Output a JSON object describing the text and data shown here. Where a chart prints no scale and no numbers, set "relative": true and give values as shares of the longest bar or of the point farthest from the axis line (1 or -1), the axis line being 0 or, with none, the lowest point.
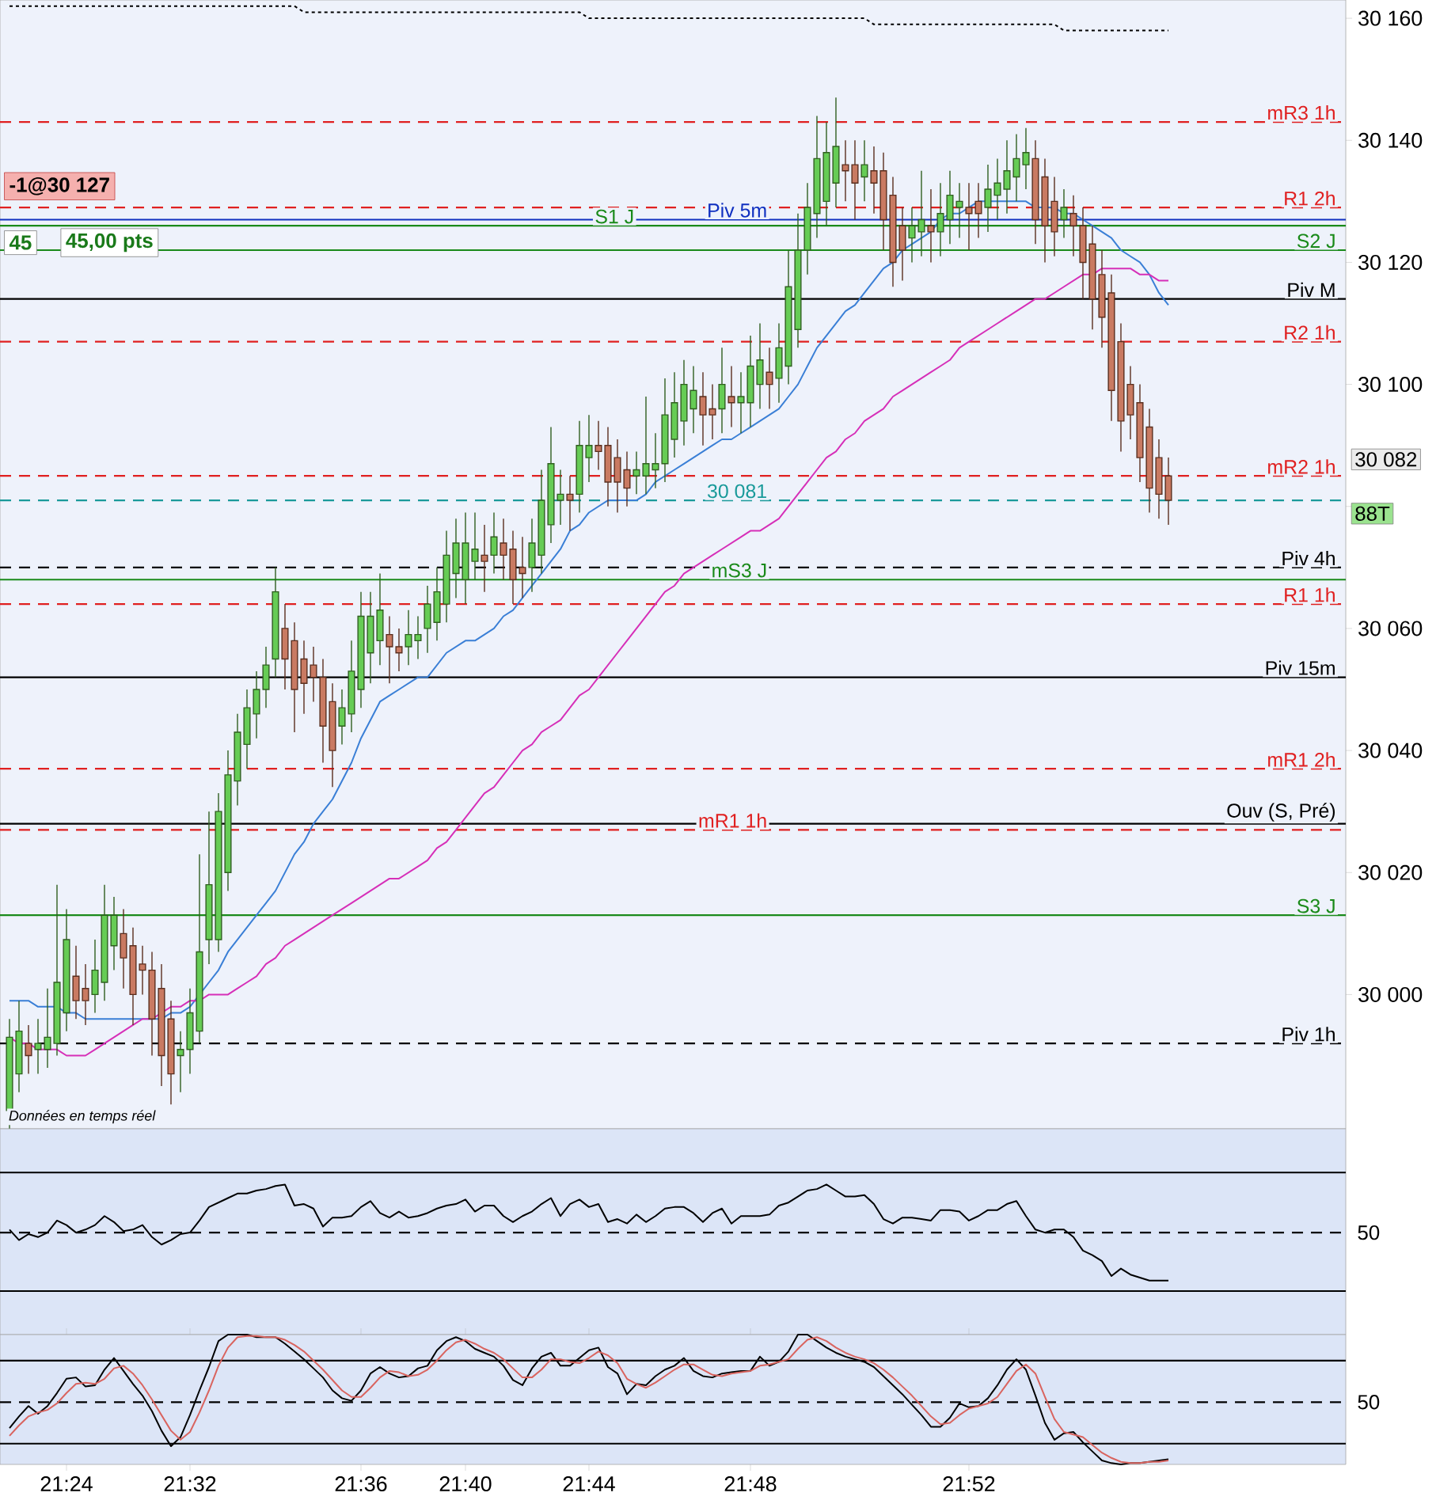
{
  "chart_data": [
    {
      "type": "candlestick",
      "categories": [
        null,
        null,
        null,
        null,
        null,
        null,
        null,
        null,
        null,
        null,
        null,
        null,
        null,
        null,
        null,
        null,
        null,
        null,
        null,
        null,
        null,
        null,
        null,
        null,
        null,
        null,
        null,
        null,
        null,
        null,
        null,
        null,
        null,
        null,
        null,
        null,
        null,
        null,
        null,
        null,
        null,
        null,
        null,
        null,
        null,
        null,
        null,
        null,
        null,
        null,
        null,
        null,
        null,
        null,
        null,
        null,
        null,
        null,
        null,
        null,
        null,
        null,
        null,
        null,
        null,
        null,
        null,
        null,
        null,
        null,
        null,
        null,
        null,
        null,
        null,
        null,
        null,
        null,
        null,
        null,
        null,
        null,
        null,
        null,
        null,
        null,
        null,
        null,
        null,
        null,
        null,
        null,
        null,
        null,
        null,
        null,
        null,
        null,
        null,
        null,
        null,
        null,
        null,
        null,
        null,
        null,
        null,
        null,
        null,
        null,
        null,
        null,
        null,
        null,
        null,
        null,
        null,
        null,
        null,
        null,
        null,
        null,
        null
      ],
      "ohlc": [
        [
          29981,
          29996,
          29978,
          29993
        ],
        [
          29987,
          29999,
          29984,
          29994
        ],
        [
          29992,
          29995,
          29987,
          29990
        ],
        [
          29991,
          29996,
          29987,
          29992
        ],
        [
          29991,
          30001,
          29988,
          29993
        ],
        [
          29992,
          30018,
          29990,
          30002
        ],
        [
          29997,
          30014,
          29994,
          30009
        ],
        [
          30003,
          30008,
          29996,
          29999
        ],
        [
          30001,
          30005,
          29995,
          29999
        ],
        [
          30000,
          30009,
          29997,
          30004
        ],
        [
          30002,
          30018,
          29999,
          30013
        ],
        [
          30008,
          30016,
          30004,
          30013
        ],
        [
          30010,
          30014,
          30001,
          30006
        ],
        [
          30008,
          30011,
          29995,
          30000
        ],
        [
          30005,
          30008,
          30000,
          30004
        ],
        [
          30004,
          30007,
          29990,
          29996
        ],
        [
          30001,
          30005,
          29985,
          29990
        ],
        [
          29996,
          29999,
          29982,
          29987
        ],
        [
          29990,
          29994,
          29984,
          29991
        ],
        [
          29991,
          30001,
          29987,
          29997
        ],
        [
          29994,
          30023,
          29992,
          30007
        ],
        [
          30009,
          30030,
          30005,
          30018
        ],
        [
          30009,
          30033,
          30007,
          30030
        ],
        [
          30020,
          30040,
          30017,
          30036
        ],
        [
          30035,
          30046,
          30031,
          30043
        ],
        [
          30041,
          30050,
          30037,
          30047
        ],
        [
          30046,
          30053,
          30042,
          30050
        ],
        [
          30050,
          30057,
          30047,
          30054
        ],
        [
          30055,
          30070,
          30052,
          30066
        ],
        [
          30060,
          30064,
          30050,
          30055
        ],
        [
          30058,
          30061,
          30043,
          30050
        ],
        [
          30055,
          30058,
          30046,
          30051
        ],
        [
          30054,
          30057,
          30048,
          30052
        ],
        [
          30052,
          30055,
          30038,
          30044
        ],
        [
          30048,
          30051,
          30034,
          30040
        ],
        [
          30044,
          30050,
          30041,
          30047
        ],
        [
          30046,
          30058,
          30043,
          30053
        ],
        [
          30050,
          30066,
          30047,
          30062
        ],
        [
          30056,
          30066,
          30051,
          30062
        ],
        [
          30058,
          30069,
          30054,
          30063
        ],
        [
          30059,
          30062,
          30051,
          30057
        ],
        [
          30057,
          30060,
          30053,
          30056
        ],
        [
          30057,
          30063,
          30054,
          30059
        ],
        [
          30058,
          30062,
          30055,
          30059
        ],
        [
          30060,
          30067,
          30056,
          30064
        ],
        [
          30061,
          30070,
          30058,
          30066
        ],
        [
          30064,
          30076,
          30061,
          30072
        ],
        [
          30069,
          30078,
          30065,
          30074
        ],
        [
          30068,
          30079,
          30064,
          30074
        ],
        [
          30071,
          30079,
          30068,
          30073
        ],
        [
          30072,
          30077,
          30066,
          30071
        ],
        [
          30072,
          30079,
          30069,
          30075
        ],
        [
          30074,
          30078,
          30068,
          30072
        ],
        [
          30073,
          30076,
          30064,
          30068
        ],
        [
          30070,
          30075,
          30065,
          30069
        ],
        [
          30070,
          30078,
          30066,
          30074
        ],
        [
          30072,
          30086,
          30069,
          30081
        ],
        [
          30077,
          30093,
          30074,
          30087
        ],
        [
          30081,
          30086,
          30077,
          30082
        ],
        [
          30082,
          30085,
          30076,
          30081
        ],
        [
          30082,
          30094,
          30079,
          30090
        ],
        [
          30088,
          30095,
          30084,
          30090
        ],
        [
          30090,
          30094,
          30086,
          30089
        ],
        [
          30090,
          30093,
          30080,
          30084
        ],
        [
          30088,
          30091,
          30079,
          30084
        ],
        [
          30086,
          30089,
          30080,
          30083
        ],
        [
          30085,
          30089,
          30082,
          30086
        ],
        [
          30085,
          30098,
          30082,
          30087
        ],
        [
          30086,
          30092,
          30083,
          30087
        ],
        [
          30087,
          30101,
          30084,
          30095
        ],
        [
          30091,
          30102,
          30088,
          30097
        ],
        [
          30094,
          30104,
          30090,
          30100
        ],
        [
          30096,
          30103,
          30092,
          30099
        ],
        [
          30098,
          30102,
          30090,
          30095
        ],
        [
          30096,
          30100,
          30091,
          30095
        ],
        [
          30096,
          30106,
          30092,
          30100
        ],
        [
          30098,
          30103,
          30093,
          30097
        ],
        [
          30097,
          30102,
          30092,
          30098
        ],
        [
          30097,
          30108,
          30093,
          30103
        ],
        [
          30100,
          30110,
          30096,
          30104
        ],
        [
          30102,
          30106,
          30096,
          30100
        ],
        [
          30101,
          30110,
          30097,
          30106
        ],
        [
          30103,
          30122,
          30100,
          30116
        ],
        [
          30109,
          30128,
          30106,
          30122
        ],
        [
          30122,
          30133,
          30118,
          30129
        ],
        [
          30128,
          30144,
          30124,
          30137
        ],
        [
          30130,
          30143,
          30126,
          30138
        ],
        [
          30133,
          30147,
          30129,
          30139
        ],
        [
          30136,
          30140,
          30130,
          30135
        ],
        [
          30136,
          30140,
          30127,
          30133
        ],
        [
          30134,
          30140,
          30130,
          30136
        ],
        [
          30135,
          30139,
          30128,
          30133
        ],
        [
          30135,
          30138,
          30122,
          30127
        ],
        [
          30131,
          30134,
          30116,
          30120
        ],
        [
          30126,
          30129,
          30117,
          30122
        ],
        [
          30124,
          30129,
          30120,
          30126
        ],
        [
          30125,
          30135,
          30121,
          30127
        ],
        [
          30126,
          30132,
          30120,
          30125
        ],
        [
          30125,
          30133,
          30121,
          30128
        ],
        [
          30127,
          30135,
          30123,
          30131
        ],
        [
          30129,
          30133,
          30124,
          30130
        ],
        [
          30129,
          30133,
          30122,
          30128
        ],
        [
          30130,
          30133,
          30124,
          30128
        ],
        [
          30129,
          30136,
          30125,
          30132
        ],
        [
          30131,
          30137,
          30127,
          30133
        ],
        [
          30132,
          30140,
          30128,
          30135
        ],
        [
          30134,
          30141,
          30130,
          30137
        ],
        [
          30136,
          30142,
          30132,
          30138
        ],
        [
          30137,
          30140,
          30123,
          30127
        ],
        [
          30134,
          30137,
          30120,
          30126
        ],
        [
          30130,
          30134,
          30121,
          30125
        ],
        [
          30127,
          30132,
          30124,
          30129
        ],
        [
          30128,
          30131,
          30121,
          30126
        ],
        [
          30126,
          30129,
          30114,
          30120
        ],
        [
          30123,
          30126,
          30109,
          30114
        ],
        [
          30118,
          30122,
          30106,
          30111
        ],
        [
          30115,
          30118,
          30094,
          30099
        ],
        [
          30107,
          30110,
          30089,
          30094
        ],
        [
          30100,
          30103,
          30091,
          30095
        ],
        [
          30097,
          30100,
          30084,
          30088
        ],
        [
          30093,
          30096,
          30079,
          30083
        ],
        [
          30088,
          30091,
          30078,
          30082
        ],
        [
          30085,
          30088,
          30077,
          30081
        ]
      ],
      "series": [
        {
          "type": "line",
          "color": "#3a7fd6",
          "values": [
            29999,
            29999,
            29999,
            29998,
            29998,
            29998,
            29997,
            29997,
            29996,
            29996,
            29996,
            29996,
            29996,
            29996,
            29996,
            29996,
            29996,
            29997,
            29997,
            29998,
            30000,
            30002,
            30004,
            30007,
            30009,
            30011,
            30013,
            30015,
            30017,
            30020,
            30023,
            30025,
            30028,
            30030,
            30032,
            30035,
            30038,
            30042,
            30045,
            30048,
            30049,
            30050,
            30051,
            30052,
            30052,
            30054,
            30056,
            30057,
            30058,
            30058,
            30059,
            30060,
            30062,
            30063,
            30065,
            30067,
            30069,
            30071,
            30073,
            30076,
            30077,
            30079,
            30080,
            30081,
            30081,
            30081,
            30081,
            30082,
            30084,
            30085,
            30086,
            30087,
            30088,
            30089,
            30090,
            30091,
            30091,
            30092,
            30093,
            30094,
            30095,
            30096,
            30098,
            30100,
            30103,
            30106,
            30108,
            30110,
            30112,
            30113,
            30115,
            30117,
            30119,
            30120,
            30122,
            30123,
            30124,
            30125,
            30127,
            30128,
            30128,
            30129,
            30130,
            30130,
            30130,
            30130,
            30130,
            30130,
            30129,
            30129,
            30129,
            30128,
            30128,
            30127,
            30126,
            30125,
            30124,
            30122,
            30121,
            30120,
            30118,
            30115,
            30113
          ]
        },
        {
          "type": "line",
          "color": "#d62fb8",
          "values": [
            29993,
            29992,
            29992,
            29991,
            29991,
            29991,
            29990,
            29990,
            29990,
            29991,
            29992,
            29993,
            29994,
            29995,
            29996,
            29996,
            29997,
            29998,
            29998,
            29999,
            29999,
            30000,
            30000,
            30000,
            30001,
            30002,
            30003,
            30005,
            30006,
            30008,
            30009,
            30010,
            30011,
            30012,
            30013,
            30014,
            30015,
            30016,
            30017,
            30018,
            30019,
            30019,
            30020,
            30021,
            30022,
            30024,
            30025,
            30027,
            30029,
            30031,
            30033,
            30034,
            30036,
            30038,
            30040,
            30041,
            30043,
            30044,
            30045,
            30047,
            30049,
            30050,
            30052,
            30054,
            30056,
            30058,
            30060,
            30062,
            30064,
            30066,
            30067,
            30069,
            30070,
            30071,
            30072,
            30073,
            30074,
            30075,
            30076,
            30076,
            30077,
            30078,
            30080,
            30082,
            30084,
            30086,
            30088,
            30089,
            30091,
            30092,
            30094,
            30095,
            30096,
            30098,
            30099,
            30100,
            30101,
            30102,
            30103,
            30104,
            30106,
            30107,
            30108,
            30109,
            30110,
            30111,
            30112,
            30113,
            30114,
            30114,
            30115,
            30116,
            30117,
            30118,
            30118,
            30119,
            30119,
            30119,
            30119,
            30118,
            30118,
            30117,
            30117
          ]
        },
        {
          "type": "line",
          "color": "#000000",
          "line_style": "dotted",
          "values": [
            30162,
            30162,
            30162,
            30162,
            30162,
            30162,
            30162,
            30162,
            30162,
            30162,
            30162,
            30162,
            30162,
            30162,
            30162,
            30162,
            30162,
            30162,
            30162,
            30162,
            30162,
            30162,
            30162,
            30162,
            30162,
            30162,
            30162,
            30162,
            30162,
            30162,
            30162,
            30161,
            30161,
            30161,
            30161,
            30161,
            30161,
            30161,
            30161,
            30161,
            30161,
            30161,
            30161,
            30161,
            30161,
            30161,
            30161,
            30161,
            30161,
            30161,
            30161,
            30161,
            30161,
            30161,
            30161,
            30161,
            30161,
            30161,
            30161,
            30161,
            30161,
            30160,
            30160,
            30160,
            30160,
            30160,
            30160,
            30160,
            30160,
            30160,
            30160,
            30160,
            30160,
            30160,
            30160,
            30160,
            30160,
            30160,
            30160,
            30160,
            30160,
            30160,
            30160,
            30160,
            30160,
            30160,
            30160,
            30160,
            30160,
            30160,
            30160,
            30159,
            30159,
            30159,
            30159,
            30159,
            30159,
            30159,
            30159,
            30159,
            30159,
            30159,
            30159,
            30159,
            30159,
            30159,
            30159,
            30159,
            30159,
            30159,
            30159,
            30158,
            30158,
            30158,
            30158,
            30158,
            30158,
            30158,
            30158,
            30158,
            30158,
            30158,
            30158
          ]
        }
      ],
      "ylim": [
        29978,
        30163
      ],
      "yticks": [
        {
          "value": 30000,
          "label": "30 000"
        },
        {
          "value": 30020,
          "label": "30 020"
        },
        {
          "value": 30040,
          "label": "30 040"
        },
        {
          "value": 30060,
          "label": "30 060"
        },
        {
          "value": 30080,
          "label": null
        },
        {
          "value": 30100,
          "label": "30 100"
        },
        {
          "value": 30120,
          "label": "30 120"
        },
        {
          "value": 30140,
          "label": "30 140"
        },
        {
          "value": 30160,
          "label": "30 160"
        }
      ],
      "ref_lines": [
        {
          "axis": "y",
          "value": 30143,
          "label": "mR3 1h",
          "color": "#e02020",
          "line_style": "dashed"
        },
        {
          "axis": "y",
          "value": 30129,
          "label": "R1 2h",
          "color": "#e02020",
          "line_style": "dashed"
        },
        {
          "axis": "y",
          "value": 30127,
          "label": "Piv 5m",
          "color": "#1030c0",
          "line_style": "solid"
        },
        {
          "axis": "y",
          "value": 30126,
          "label": "S1 J",
          "color": "#1a8a1a",
          "line_style": "solid"
        },
        {
          "axis": "y",
          "value": 30122,
          "label": "S2 J",
          "color": "#1a8a1a",
          "line_style": "solid"
        },
        {
          "axis": "y",
          "value": 30114,
          "label": "Piv M",
          "color": "#000000",
          "line_style": "solid"
        },
        {
          "axis": "y",
          "value": 30107,
          "label": "R2 1h",
          "color": "#e02020",
          "line_style": "dashed"
        },
        {
          "axis": "y",
          "value": 30085,
          "label": "mR2 1h",
          "color": "#e02020",
          "line_style": "dashed"
        },
        {
          "axis": "y",
          "value": 30081,
          "label": "30 081",
          "color": "#1a9a9a",
          "line_style": "dashed"
        },
        {
          "axis": "y",
          "value": 30070,
          "label": "Piv 4h",
          "color": "#000000",
          "line_style": "dashed"
        },
        {
          "axis": "y",
          "value": 30068,
          "label": "mS3 J",
          "color": "#1a8a1a",
          "line_style": "solid"
        },
        {
          "axis": "y",
          "value": 30064,
          "label": "R1 1h",
          "color": "#e02020",
          "line_style": "dashed"
        },
        {
          "axis": "y",
          "value": 30052,
          "label": "Piv 15m",
          "color": "#000000",
          "line_style": "solid"
        },
        {
          "axis": "y",
          "value": 30037,
          "label": "mR1 2h",
          "color": "#e02020",
          "line_style": "dashed"
        },
        {
          "axis": "y",
          "value": 30028,
          "label": "Ouv (S, Pré)",
          "color": "#000000",
          "line_style": "solid"
        },
        {
          "axis": "y",
          "value": 30027,
          "label": "mR1 1h",
          "color": "#e02020",
          "line_style": "dashed"
        },
        {
          "axis": "y",
          "value": 30013,
          "label": "S3 J",
          "color": "#1a8a1a",
          "line_style": "solid"
        },
        {
          "axis": "y",
          "value": 29992,
          "label": "Piv 1h",
          "color": "#000000",
          "line_style": "dashed"
        }
      ],
      "annotations": [
        "-1@30 127",
        "45",
        "45,00 pts",
        "Données en temps réel",
        "30 082",
        "88T"
      ],
      "tick_labels": "y"
    },
    {
      "type": "line",
      "relative": true,
      "categories": [
        null,
        null,
        null,
        null,
        null,
        null,
        null,
        null,
        null,
        null,
        null,
        null,
        null,
        null,
        null,
        null,
        null,
        null,
        null,
        null,
        null,
        null,
        null,
        null,
        null,
        null,
        null,
        null,
        null,
        null,
        null,
        null,
        null,
        null,
        null,
        null,
        null,
        null,
        null,
        null,
        null,
        null,
        null,
        null,
        null,
        null,
        null,
        null,
        null,
        null,
        null,
        null,
        null,
        null,
        null,
        null,
        null,
        null,
        null,
        null,
        null,
        null,
        null,
        null,
        null,
        null,
        null,
        null,
        null,
        null,
        null,
        null,
        null,
        null,
        null,
        null,
        null,
        null,
        null,
        null,
        null,
        null,
        null,
        null,
        null,
        null,
        null,
        null,
        null,
        null,
        null,
        null,
        null,
        null,
        null,
        null,
        null,
        null,
        null,
        null,
        null,
        null,
        null,
        null,
        null,
        null,
        null,
        null,
        null,
        null,
        null,
        null,
        null,
        null,
        null,
        null,
        null,
        null,
        null,
        null,
        null,
        null,
        null
      ],
      "series": [
        {
          "color": "#000000",
          "values": [
            0.7,
            0.63,
            0.67,
            0.65,
            0.68,
            0.76,
            0.73,
            0.68,
            0.7,
            0.73,
            0.79,
            0.75,
            0.69,
            0.7,
            0.73,
            0.65,
            0.6,
            0.63,
            0.67,
            0.68,
            0.76,
            0.85,
            0.88,
            0.91,
            0.94,
            0.94,
            0.96,
            0.97,
            0.99,
            1.0,
            0.86,
            0.87,
            0.84,
            0.72,
            0.78,
            0.78,
            0.79,
            0.85,
            0.89,
            0.81,
            0.78,
            0.82,
            0.78,
            0.79,
            0.81,
            0.84,
            0.86,
            0.87,
            0.9,
            0.82,
            0.86,
            0.86,
            0.79,
            0.75,
            0.79,
            0.82,
            0.87,
            0.91,
            0.79,
            0.87,
            0.9,
            0.85,
            0.87,
            0.75,
            0.77,
            0.74,
            0.8,
            0.75,
            0.79,
            0.84,
            0.85,
            0.85,
            0.81,
            0.75,
            0.81,
            0.84,
            0.74,
            0.79,
            0.79,
            0.79,
            0.8,
            0.86,
            0.88,
            0.92,
            0.96,
            0.97,
            1.0,
            0.96,
            0.92,
            0.92,
            0.93,
            0.87,
            0.77,
            0.74,
            0.78,
            0.78,
            0.77,
            0.76,
            0.83,
            0.83,
            0.82,
            0.76,
            0.79,
            0.83,
            0.83,
            0.87,
            0.89,
            0.79,
            0.7,
            0.68,
            0.7,
            0.7,
            0.65,
            0.56,
            0.53,
            0.49,
            0.39,
            0.44,
            0.4,
            0.38,
            0.36,
            0.36,
            0.36
          ]
        }
      ],
      "ref_lines": [
        {
          "axis": "y",
          "value": 1.08,
          "color": "#000000",
          "line_style": "solid"
        },
        {
          "axis": "y",
          "value": 0.68,
          "color": "#000000",
          "line_style": "dashed"
        },
        {
          "axis": "y",
          "value": 0.29,
          "color": "#000000",
          "line_style": "solid"
        }
      ],
      "annotations": [
        "50"
      ],
      "tick_labels": false
    },
    {
      "type": "line",
      "relative": true,
      "categories": [
        null,
        null,
        null,
        null,
        null,
        null,
        "21:24",
        null,
        null,
        null,
        null,
        null,
        null,
        null,
        null,
        null,
        null,
        null,
        null,
        "21:32",
        null,
        null,
        null,
        null,
        null,
        null,
        null,
        null,
        null,
        null,
        null,
        null,
        null,
        null,
        null,
        null,
        null,
        "21:36",
        null,
        null,
        null,
        null,
        null,
        null,
        null,
        null,
        null,
        null,
        "21:40",
        null,
        null,
        null,
        null,
        null,
        null,
        null,
        null,
        null,
        null,
        null,
        null,
        "21:44",
        null,
        null,
        null,
        null,
        null,
        null,
        null,
        null,
        null,
        null,
        null,
        null,
        null,
        null,
        null,
        null,
        "21:48",
        null,
        null,
        null,
        null,
        null,
        null,
        null,
        null,
        null,
        null,
        null,
        null,
        null,
        null,
        null,
        null,
        null,
        null,
        null,
        null,
        null,
        null,
        "21:52",
        null,
        null,
        null,
        null,
        null,
        null,
        null,
        null,
        null,
        null,
        null,
        null,
        null,
        null,
        null,
        null,
        null,
        null,
        null,
        null,
        null
      ],
      "series": [
        {
          "color": "#000000",
          "values": [
            0.28,
            0.37,
            0.45,
            0.39,
            0.45,
            0.55,
            0.66,
            0.67,
            0.6,
            0.61,
            0.73,
            0.82,
            0.72,
            0.62,
            0.53,
            0.41,
            0.26,
            0.14,
            0.21,
            0.38,
            0.57,
            0.75,
            0.95,
            1.0,
            1.0,
            1.0,
            0.98,
            0.98,
            0.98,
            0.93,
            0.87,
            0.81,
            0.74,
            0.67,
            0.57,
            0.51,
            0.49,
            0.57,
            0.7,
            0.75,
            0.7,
            0.67,
            0.68,
            0.74,
            0.76,
            0.88,
            0.95,
            0.98,
            0.95,
            0.89,
            0.86,
            0.83,
            0.76,
            0.65,
            0.61,
            0.74,
            0.83,
            0.86,
            0.76,
            0.76,
            0.82,
            0.88,
            0.9,
            0.75,
            0.7,
            0.54,
            0.62,
            0.61,
            0.68,
            0.73,
            0.76,
            0.82,
            0.72,
            0.68,
            0.67,
            0.7,
            0.71,
            0.72,
            0.72,
            0.83,
            0.76,
            0.79,
            0.87,
            1.0,
            1.0,
            0.95,
            0.9,
            0.86,
            0.83,
            0.81,
            0.79,
            0.75,
            0.68,
            0.61,
            0.54,
            0.46,
            0.38,
            0.29,
            0.29,
            0.36,
            0.47,
            0.44,
            0.45,
            0.51,
            0.61,
            0.73,
            0.81,
            0.73,
            0.53,
            0.32,
            0.19,
            0.24,
            0.25,
            0.17,
            0.1,
            0.03,
            0.01,
            0.0,
            0.01,
            0.01,
            0.02,
            0.03,
            0.04
          ]
        },
        {
          "color": "#d9645f",
          "values": [
            0.22,
            0.3,
            0.37,
            0.4,
            0.42,
            0.47,
            0.55,
            0.62,
            0.63,
            0.62,
            0.66,
            0.74,
            0.76,
            0.7,
            0.61,
            0.5,
            0.38,
            0.26,
            0.19,
            0.25,
            0.4,
            0.57,
            0.76,
            0.9,
            0.98,
            0.99,
            0.99,
            0.98,
            0.98,
            0.96,
            0.92,
            0.87,
            0.8,
            0.73,
            0.65,
            0.57,
            0.52,
            0.52,
            0.59,
            0.67,
            0.72,
            0.71,
            0.68,
            0.69,
            0.73,
            0.8,
            0.88,
            0.94,
            0.96,
            0.93,
            0.89,
            0.86,
            0.81,
            0.74,
            0.67,
            0.67,
            0.73,
            0.81,
            0.81,
            0.79,
            0.78,
            0.82,
            0.87,
            0.84,
            0.78,
            0.66,
            0.62,
            0.59,
            0.63,
            0.68,
            0.73,
            0.77,
            0.77,
            0.73,
            0.69,
            0.68,
            0.7,
            0.71,
            0.72,
            0.76,
            0.77,
            0.79,
            0.81,
            0.89,
            0.96,
            0.98,
            0.95,
            0.9,
            0.86,
            0.83,
            0.81,
            0.78,
            0.73,
            0.67,
            0.6,
            0.53,
            0.45,
            0.37,
            0.31,
            0.32,
            0.38,
            0.43,
            0.45,
            0.47,
            0.52,
            0.62,
            0.72,
            0.77,
            0.7,
            0.52,
            0.35,
            0.25,
            0.23,
            0.21,
            0.15,
            0.09,
            0.05,
            0.02,
            0.01,
            0.01,
            0.02,
            0.02,
            0.03
          ]
        }
      ],
      "ref_lines": [
        {
          "axis": "y",
          "value": 0.8,
          "color": "#000000",
          "line_style": "solid"
        },
        {
          "axis": "y",
          "value": 0.48,
          "color": "#000000",
          "line_style": "dashed"
        },
        {
          "axis": "y",
          "value": 0.16,
          "color": "#000000",
          "line_style": "solid"
        }
      ],
      "annotations": [
        "50"
      ],
      "tick_labels": "x"
    }
  ]
}
